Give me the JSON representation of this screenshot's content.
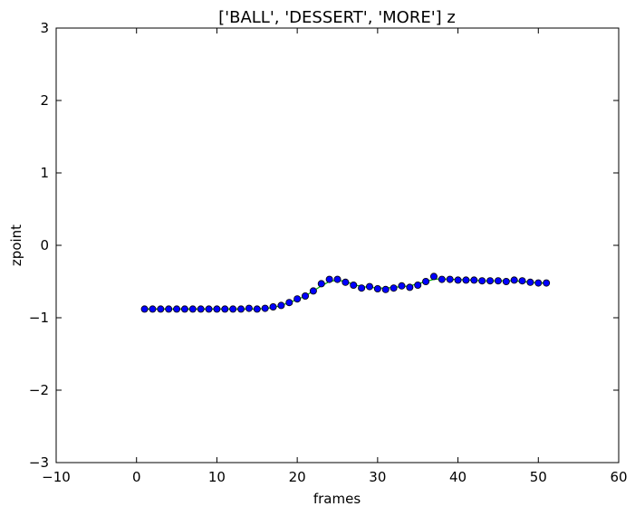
{
  "chart_data": {
    "type": "scatter",
    "title": "['BALL', 'DESSERT', 'MORE'] z",
    "xlabel": "frames",
    "ylabel": "zpoint",
    "xlim": [
      -10,
      60
    ],
    "ylim": [
      -3,
      3
    ],
    "xticks": [
      -10,
      0,
      10,
      20,
      30,
      40,
      50,
      60
    ],
    "yticks": [
      -3,
      -2,
      -1,
      0,
      1,
      2,
      3
    ],
    "xtick_labels": [
      "−10",
      "0",
      "10",
      "20",
      "30",
      "40",
      "50",
      "60"
    ],
    "ytick_labels": [
      "−3",
      "−2",
      "−1",
      "0",
      "1",
      "2",
      "3"
    ],
    "grid": false,
    "colors": {
      "points": "#0000ff",
      "line": "#00aa00",
      "frame": "#000000"
    },
    "series": [
      {
        "x": [
          1,
          2,
          3,
          4,
          5,
          6,
          7,
          8,
          9,
          10,
          11,
          12,
          13,
          14,
          15,
          16,
          17,
          18,
          19,
          20,
          21,
          22,
          23,
          24,
          25,
          26,
          27,
          28,
          29,
          30,
          31,
          32,
          33,
          34,
          35,
          36,
          37,
          38,
          39,
          40,
          41,
          42,
          43,
          44,
          45,
          46,
          47,
          48,
          49,
          50,
          51
        ],
        "y": [
          -0.88,
          -0.88,
          -0.88,
          -0.88,
          -0.88,
          -0.88,
          -0.88,
          -0.88,
          -0.88,
          -0.88,
          -0.88,
          -0.88,
          -0.88,
          -0.87,
          -0.88,
          -0.87,
          -0.85,
          -0.83,
          -0.79,
          -0.74,
          -0.7,
          -0.63,
          -0.53,
          -0.47,
          -0.47,
          -0.51,
          -0.55,
          -0.59,
          -0.57,
          -0.6,
          -0.61,
          -0.59,
          -0.56,
          -0.58,
          -0.55,
          -0.5,
          -0.43,
          -0.47,
          -0.47,
          -0.48,
          -0.48,
          -0.48,
          -0.49,
          -0.49,
          -0.49,
          -0.5,
          -0.48,
          -0.49,
          -0.51,
          -0.52,
          -0.52
        ],
        "fit": [
          -0.88,
          -0.88,
          -0.88,
          -0.88,
          -0.88,
          -0.88,
          -0.88,
          -0.88,
          -0.88,
          -0.88,
          -0.88,
          -0.88,
          -0.88,
          -0.88,
          -0.88,
          -0.87,
          -0.86,
          -0.83,
          -0.79,
          -0.75,
          -0.7,
          -0.63,
          -0.56,
          -0.5,
          -0.48,
          -0.5,
          -0.54,
          -0.57,
          -0.58,
          -0.59,
          -0.59,
          -0.58,
          -0.57,
          -0.56,
          -0.53,
          -0.5,
          -0.47,
          -0.46,
          -0.47,
          -0.47,
          -0.48,
          -0.48,
          -0.49,
          -0.49,
          -0.49,
          -0.49,
          -0.49,
          -0.5,
          -0.51,
          -0.52,
          -0.52
        ]
      }
    ]
  }
}
